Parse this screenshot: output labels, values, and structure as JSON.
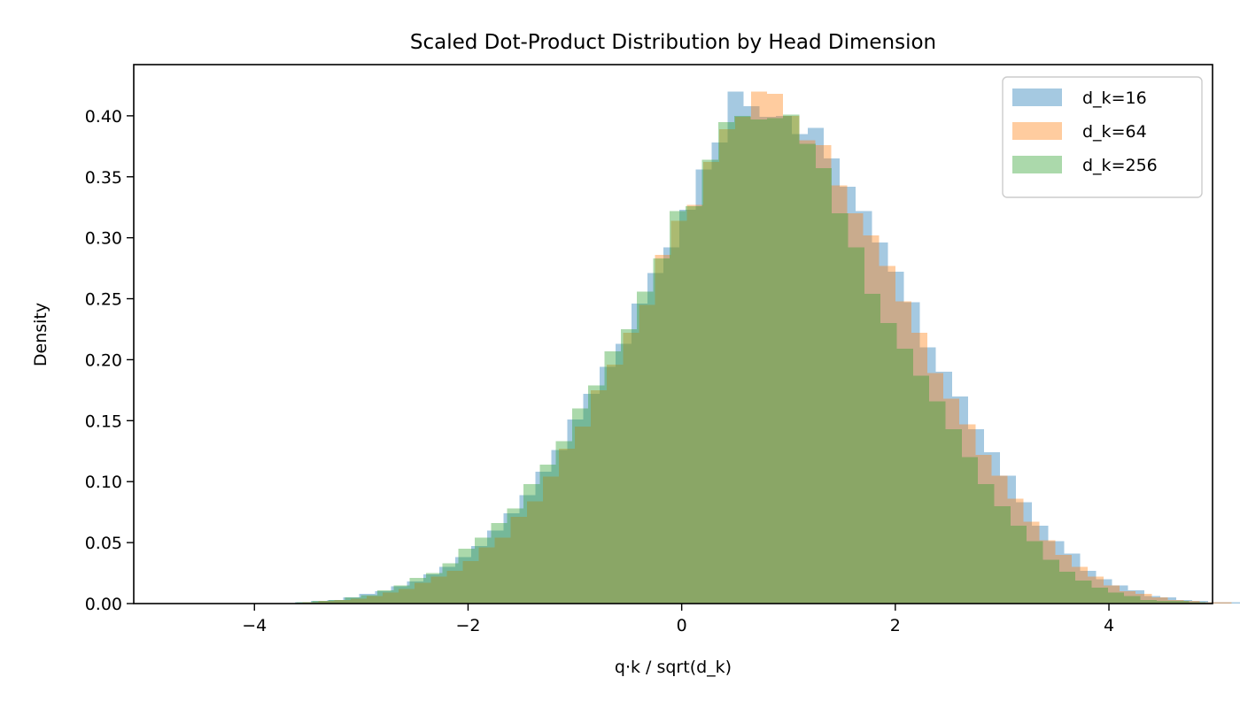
{
  "chart_data": {
    "type": "bar",
    "subtype": "overlaid-histogram",
    "title": "Scaled Dot-Product Distribution by Head Dimension",
    "xlabel": "q·k / sqrt(d_k)",
    "ylabel": "Density",
    "xlim": [
      -5.13,
      4.97
    ],
    "ylim": [
      0,
      0.442
    ],
    "xticks": [
      -4,
      -2,
      0,
      2,
      4
    ],
    "xtick_labels": [
      "−4",
      "−2",
      "0",
      "2",
      "4"
    ],
    "yticks": [
      0.0,
      0.05,
      0.1,
      0.15,
      0.2,
      0.25,
      0.3,
      0.35,
      0.4
    ],
    "ytick_labels": [
      "0.00",
      "0.05",
      "0.10",
      "0.15",
      "0.20",
      "0.25",
      "0.30",
      "0.35",
      "0.40"
    ],
    "grid": false,
    "legend_position": "upper right",
    "bar_alpha": 0.4,
    "series": [
      {
        "name": "d_k=16",
        "color": "#1f77b4",
        "bin_start": -3.62,
        "bin_width": 0.15,
        "values": [
          0.001,
          0.002,
          0.003,
          0.005,
          0.008,
          0.01,
          0.014,
          0.018,
          0.024,
          0.03,
          0.038,
          0.047,
          0.06,
          0.074,
          0.089,
          0.108,
          0.126,
          0.151,
          0.172,
          0.194,
          0.213,
          0.246,
          0.271,
          0.292,
          0.323,
          0.356,
          0.378,
          0.42,
          0.408,
          0.399,
          0.4,
          0.385,
          0.39,
          0.365,
          0.342,
          0.322,
          0.296,
          0.272,
          0.247,
          0.21,
          0.19,
          0.17,
          0.143,
          0.124,
          0.105,
          0.083,
          0.064,
          0.051,
          0.041,
          0.027,
          0.02,
          0.015,
          0.011,
          0.006,
          0.005,
          0.003,
          0.002,
          0.001,
          0.001
        ]
      },
      {
        "name": "d_k=64",
        "color": "#ff7f0e",
        "bin_start": -3.55,
        "bin_width": 0.15,
        "values": [
          0.001,
          0.002,
          0.003,
          0.004,
          0.006,
          0.009,
          0.012,
          0.017,
          0.022,
          0.027,
          0.035,
          0.046,
          0.054,
          0.071,
          0.084,
          0.104,
          0.127,
          0.145,
          0.175,
          0.196,
          0.222,
          0.245,
          0.286,
          0.314,
          0.327,
          0.362,
          0.389,
          0.399,
          0.42,
          0.418,
          0.4,
          0.38,
          0.376,
          0.343,
          0.32,
          0.302,
          0.277,
          0.248,
          0.222,
          0.189,
          0.168,
          0.147,
          0.122,
          0.105,
          0.086,
          0.067,
          0.052,
          0.04,
          0.03,
          0.022,
          0.015,
          0.01,
          0.008,
          0.005,
          0.003,
          0.002,
          0.001,
          0.001
        ]
      },
      {
        "name": "d_k=256",
        "color": "#2ca02c",
        "bin_start": -3.61,
        "bin_width": 0.152,
        "values": [
          0.001,
          0.002,
          0.003,
          0.005,
          0.007,
          0.011,
          0.015,
          0.021,
          0.025,
          0.033,
          0.045,
          0.054,
          0.066,
          0.078,
          0.098,
          0.114,
          0.133,
          0.16,
          0.179,
          0.207,
          0.225,
          0.256,
          0.283,
          0.322,
          0.326,
          0.364,
          0.395,
          0.4,
          0.397,
          0.398,
          0.401,
          0.377,
          0.357,
          0.32,
          0.292,
          0.254,
          0.23,
          0.209,
          0.187,
          0.166,
          0.143,
          0.12,
          0.098,
          0.08,
          0.064,
          0.051,
          0.036,
          0.026,
          0.019,
          0.013,
          0.009,
          0.006,
          0.003,
          0.002,
          0.002,
          0.001
        ]
      }
    ]
  },
  "legend": {
    "items": [
      {
        "label": "d_k=16",
        "color": "#1f77b4"
      },
      {
        "label": "d_k=64",
        "color": "#ff7f0e"
      },
      {
        "label": "d_k=256",
        "color": "#2ca02c"
      }
    ]
  }
}
